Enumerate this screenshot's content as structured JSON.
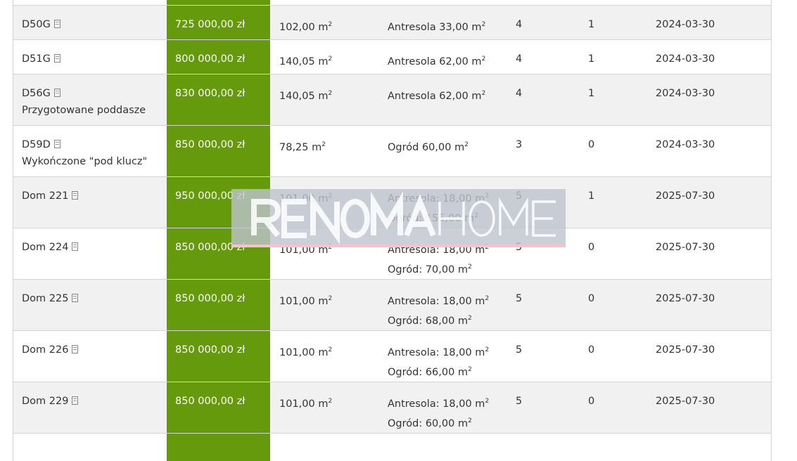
{
  "rows": [
    {
      "name": "",
      "note": "",
      "price": "",
      "area": "",
      "extra1": "",
      "extra2": "",
      "rooms": "",
      "floor": "",
      "date": ""
    },
    {
      "name": "D50G",
      "note": "",
      "price": "725 000,00 zł",
      "area": "102,00 m",
      "extra1": "Antresola 33,00 m",
      "extra2": "",
      "rooms": "4",
      "floor": "1",
      "date": "2024-03-30"
    },
    {
      "name": "D51G",
      "note": "",
      "price": "800 000,00 zł",
      "area": "140,05 m",
      "extra1": "Antresola 62,00 m",
      "extra2": "",
      "rooms": "4",
      "floor": "1",
      "date": "2024-03-30"
    },
    {
      "name": "D56G",
      "note": "Przygotowane poddasze",
      "price": "830 000,00 zł",
      "area": "140,05 m",
      "extra1": "Antresola 62,00 m",
      "extra2": "",
      "rooms": "4",
      "floor": "1",
      "date": "2024-03-30"
    },
    {
      "name": "D59D",
      "note": "Wykończone \"pod klucz\"",
      "price": "850 000,00 zł",
      "area": "78,25 m",
      "extra1": "Ogród 60,00 m",
      "extra2": "",
      "rooms": "3",
      "floor": "0",
      "date": "2024-03-30"
    },
    {
      "name": "Dom 221",
      "note": "",
      "price": "950 000,00 zł",
      "area": "101,00 m",
      "extra1": "Antresola: 18,00 m",
      "extra2": "Ogród: 155,00 m",
      "rooms": "5",
      "floor": "1",
      "date": "2025-07-30"
    },
    {
      "name": "Dom 224",
      "note": "",
      "price": "850 000,00 zł",
      "area": "101,00 m",
      "extra1": "Antresola: 18,00 m",
      "extra2": "Ogród: 70,00 m",
      "rooms": "5",
      "floor": "0",
      "date": "2025-07-30"
    },
    {
      "name": "Dom 225",
      "note": "",
      "price": "850 000,00 zł",
      "area": "101,00 m",
      "extra1": "Antresola: 18,00 m",
      "extra2": "Ogród: 68,00 m",
      "rooms": "5",
      "floor": "0",
      "date": "2025-07-30"
    },
    {
      "name": "Dom 226",
      "note": "",
      "price": "850 000,00 zł",
      "area": "101,00 m",
      "extra1": "Antresola: 18,00 m",
      "extra2": "Ogród: 66,00 m",
      "rooms": "5",
      "floor": "0",
      "date": "2025-07-30"
    },
    {
      "name": "Dom 229",
      "note": "",
      "price": "850 000,00 zł",
      "area": "101,00 m",
      "extra1": "Antresola: 18,00 m",
      "extra2": "Ogród: 60,00 m",
      "rooms": "5",
      "floor": "0",
      "date": "2025-07-30"
    },
    {
      "name": "",
      "note": "",
      "price": "",
      "area": "",
      "extra1": "",
      "extra2": "",
      "rooms": "",
      "floor": "",
      "date": ""
    }
  ],
  "unit_sup": "2",
  "colors": {
    "price_bg": "#649a0c"
  },
  "watermark": {
    "bold": "RENOMA",
    "light": "HOME"
  }
}
